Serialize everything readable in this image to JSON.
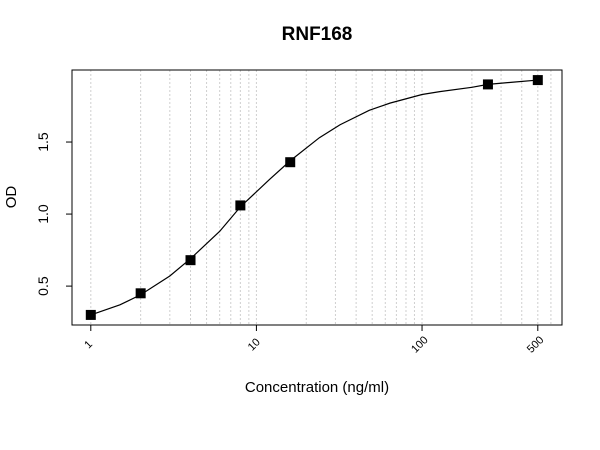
{
  "chart_data": {
    "type": "scatter",
    "title": "RNF168",
    "x_label": "Concentration (ng/ml)",
    "y_label": "OD",
    "x_scale": "log",
    "xlim": [
      0.77,
      700
    ],
    "ylim": [
      0.23,
      2.0
    ],
    "xticks": [
      1,
      10,
      100,
      500
    ],
    "yticks": [
      {
        "value": 0.5,
        "label": "0.5"
      },
      {
        "value": 1.0,
        "label": "1.0"
      },
      {
        "value": 1.5,
        "label": "1.5"
      }
    ],
    "xgrid": [
      1,
      2,
      3,
      4,
      5,
      6,
      7,
      8,
      9,
      10,
      20,
      30,
      40,
      50,
      60,
      70,
      80,
      90,
      100,
      200,
      300,
      400,
      500,
      600,
      700
    ],
    "grid": true,
    "series": [
      {
        "kind": "points",
        "color": "#000000",
        "x": [
          1,
          2,
          4,
          8,
          16,
          250,
          500
        ],
        "values": [
          0.3,
          0.45,
          0.68,
          1.06,
          1.36,
          1.9,
          1.93
        ]
      },
      {
        "kind": "curve",
        "color": "#000000",
        "x": [
          1,
          1.5,
          2,
          3,
          4,
          6,
          8,
          12,
          16,
          24,
          32,
          48,
          64,
          100,
          128,
          200,
          250,
          350,
          500
        ],
        "values": [
          0.3,
          0.37,
          0.44,
          0.57,
          0.69,
          0.88,
          1.05,
          1.24,
          1.37,
          1.53,
          1.62,
          1.72,
          1.77,
          1.83,
          1.85,
          1.88,
          1.9,
          1.915,
          1.93
        ]
      }
    ]
  }
}
